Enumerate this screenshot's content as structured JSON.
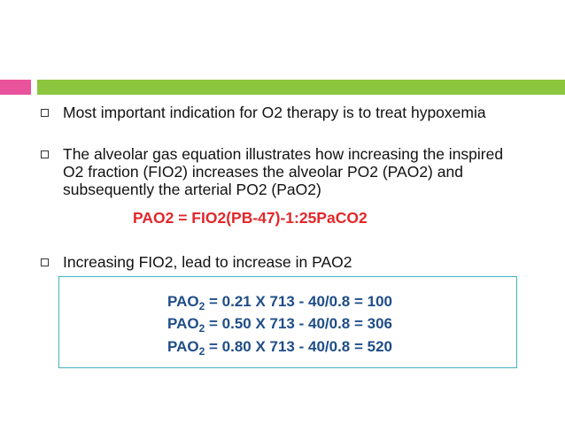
{
  "colors": {
    "accent_pink": "#e8539b",
    "accent_green": "#8cc63f",
    "formula_red": "#e3272b",
    "calc_blue": "#1f4d87",
    "box_border": "#45b1bf"
  },
  "bullets": [
    {
      "text": "Most important indication for O2 therapy is to treat hypoxemia"
    },
    {
      "text": "The alveolar gas equation illustrates how increasing the inspired O2 fraction (FIO2) increases the alveolar PO2 (PAO2) and subsequently the arterial PO2 (PaO2)"
    },
    {
      "text": "Increasing FIO2, lead to increase in PAO2"
    }
  ],
  "formula": "PAO2 = FIO2(PB-47)-1:25PaCO2",
  "calculations": [
    {
      "prefix": "PAO",
      "sub": "2",
      "rest": " = 0.21 X 713 - 40/0.8 = 100"
    },
    {
      "prefix": "PAO",
      "sub": "2",
      "rest": " = 0.50 X 713 - 40/0.8 = 306"
    },
    {
      "prefix": "PAO",
      "sub": "2",
      "rest": " = 0.80 X 713 - 40/0.8 = 520"
    }
  ]
}
